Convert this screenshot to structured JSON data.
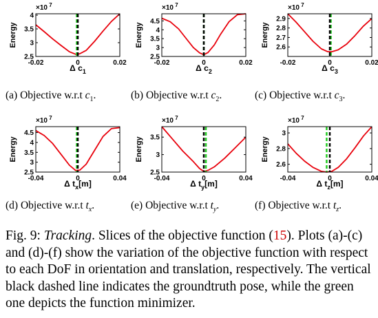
{
  "chart_data": [
    {
      "type": "line",
      "panel": "(a)",
      "caption": "Objective w.r.t",
      "caption_var": "c",
      "caption_sub": "1",
      "exponent": "×10",
      "exponent_power": "7",
      "ylabel": "Energy",
      "xlabel_delta": "Δ",
      "xlabel_var": "c",
      "xlabel_sub": "1",
      "xlabel_unit": "",
      "xlim": [
        -0.02,
        0.02
      ],
      "ylim": [
        2.5,
        4.05
      ],
      "xticks": [
        -0.02,
        0,
        0.02
      ],
      "xtick_labels": [
        "-0.02",
        "0",
        "0.02"
      ],
      "yticks": [
        2.5,
        3,
        3.5,
        4
      ],
      "ytick_labels": [
        "2.5",
        "3",
        "3.5",
        "4"
      ],
      "groundtruth_x": 0,
      "minimizer_x": -0.0005,
      "series": [
        {
          "color": "#e8000b",
          "x": [
            -0.02,
            -0.016,
            -0.012,
            -0.008,
            -0.004,
            -0.001,
            0,
            0.001,
            0.004,
            0.008,
            0.012,
            0.016,
            0.02
          ],
          "y": [
            3.65,
            3.4,
            3.14,
            2.9,
            2.67,
            2.58,
            2.58,
            2.6,
            2.72,
            3.05,
            3.42,
            3.77,
            4.05
          ]
        }
      ]
    },
    {
      "type": "line",
      "panel": "(b)",
      "caption": "Objective w.r.t",
      "caption_var": "c",
      "caption_sub": "2",
      "exponent": "×10",
      "exponent_power": "7",
      "ylabel": "Energy",
      "xlabel_delta": "Δ",
      "xlabel_var": "c",
      "xlabel_sub": "2",
      "xlabel_unit": "",
      "xlim": [
        -0.02,
        0.02
      ],
      "ylim": [
        2.5,
        4.9
      ],
      "xticks": [
        -0.02,
        0,
        0.02
      ],
      "xtick_labels": [
        "-0.02",
        "0",
        "0.02"
      ],
      "yticks": [
        2.5,
        3,
        3.5,
        4,
        4.5
      ],
      "ytick_labels": [
        "2.5",
        "3",
        "3.5",
        "4",
        "4.5"
      ],
      "groundtruth_x": 0,
      "minimizer_x": 0,
      "series": [
        {
          "color": "#e8000b",
          "x": [
            -0.02,
            -0.016,
            -0.012,
            -0.008,
            -0.005,
            -0.002,
            0,
            0.002,
            0.005,
            0.008,
            0.012,
            0.016,
            0.02
          ],
          "y": [
            4.65,
            4.45,
            4.05,
            3.45,
            3.0,
            2.7,
            2.6,
            2.72,
            3.15,
            3.75,
            4.45,
            4.85,
            4.9
          ]
        }
      ]
    },
    {
      "type": "line",
      "panel": "(c)",
      "caption": "Objective w.r.t",
      "caption_var": "c",
      "caption_sub": "3",
      "exponent": "×10",
      "exponent_power": "7",
      "ylabel": "Energy",
      "xlabel_delta": "Δ",
      "xlabel_var": "c",
      "xlabel_sub": "3",
      "xlabel_unit": "",
      "xlim": [
        -0.02,
        0.02
      ],
      "ylim": [
        2.5,
        2.95
      ],
      "xticks": [
        -0.02,
        0,
        0.02
      ],
      "xtick_labels": [
        "-0.02",
        "0",
        "0.02"
      ],
      "yticks": [
        2.6,
        2.7,
        2.8,
        2.9
      ],
      "ytick_labels": [
        "2.6",
        "2.7",
        "2.8",
        "2.9"
      ],
      "groundtruth_x": 0,
      "minimizer_x": 0.0005,
      "series": [
        {
          "color": "#e8000b",
          "x": [
            -0.02,
            -0.016,
            -0.012,
            -0.008,
            -0.004,
            -0.001,
            0.001,
            0.004,
            0.008,
            0.012,
            0.016,
            0.02
          ],
          "y": [
            2.95,
            2.86,
            2.76,
            2.66,
            2.58,
            2.55,
            2.55,
            2.57,
            2.63,
            2.72,
            2.82,
            2.9
          ]
        }
      ]
    },
    {
      "type": "line",
      "panel": "(d)",
      "caption": "Objective w.r.t",
      "caption_var": "t",
      "caption_sub": "x",
      "exponent": "×10",
      "exponent_power": "7",
      "ylabel": "Energy",
      "xlabel_delta": "Δ",
      "xlabel_var": "t",
      "xlabel_sub": "x",
      "xlabel_unit": "[m]",
      "xlim": [
        -0.04,
        0.04
      ],
      "ylim": [
        2.5,
        4.8
      ],
      "xticks": [
        -0.04,
        0,
        0.04
      ],
      "xtick_labels": [
        "-0.04",
        "0",
        "0.04"
      ],
      "yticks": [
        2.5,
        3,
        3.5,
        4,
        4.5
      ],
      "ytick_labels": [
        "2.5",
        "3",
        "3.5",
        "4",
        "4.5"
      ],
      "groundtruth_x": 0,
      "minimizer_x": -0.001,
      "series": [
        {
          "color": "#e8000b",
          "x": [
            -0.04,
            -0.032,
            -0.024,
            -0.016,
            -0.008,
            -0.002,
            0.002,
            0.008,
            0.016,
            0.024,
            0.032,
            0.04
          ],
          "y": [
            4.6,
            4.35,
            3.95,
            3.4,
            2.85,
            2.58,
            2.6,
            2.9,
            3.6,
            4.3,
            4.7,
            4.75
          ]
        }
      ]
    },
    {
      "type": "line",
      "panel": "(e)",
      "caption": "Objective w.r.t",
      "caption_var": "t",
      "caption_sub": "y",
      "exponent": "×10",
      "exponent_power": "7",
      "ylabel": "Energy",
      "xlabel_delta": "Δ",
      "xlabel_var": "t",
      "xlabel_sub": "y",
      "xlabel_unit": "[m]",
      "xlim": [
        -0.04,
        0.04
      ],
      "ylim": [
        2.5,
        3.8
      ],
      "xticks": [
        -0.04,
        0,
        0.04
      ],
      "xtick_labels": [
        "-0.04",
        "0",
        "0.04"
      ],
      "yticks": [
        2.5,
        3,
        3.5
      ],
      "ytick_labels": [
        "2.5",
        "3",
        "3.5"
      ],
      "groundtruth_x": 0,
      "minimizer_x": 0.002,
      "series": [
        {
          "color": "#e8000b",
          "x": [
            -0.04,
            -0.03,
            -0.02,
            -0.01,
            -0.004,
            0,
            0.004,
            0.01,
            0.02,
            0.03,
            0.04
          ],
          "y": [
            3.8,
            3.45,
            3.1,
            2.8,
            2.6,
            2.52,
            2.55,
            2.65,
            2.9,
            3.2,
            3.5
          ]
        }
      ]
    },
    {
      "type": "line",
      "panel": "(f)",
      "caption": "Objective w.r.t",
      "caption_var": "t",
      "caption_sub": "z",
      "exponent": "×10",
      "exponent_power": "7",
      "ylabel": "Energy",
      "xlabel_delta": "Δ",
      "xlabel_var": "t",
      "xlabel_sub": "z",
      "xlabel_unit": "[m]",
      "xlim": [
        -0.04,
        0.04
      ],
      "ylim": [
        2.5,
        3.08
      ],
      "xticks": [
        -0.04,
        0,
        0.04
      ],
      "xtick_labels": [
        "-0.04",
        "0",
        "0.04"
      ],
      "yticks": [
        2.6,
        2.8,
        3
      ],
      "ytick_labels": [
        "2.6",
        "2.8",
        "3"
      ],
      "groundtruth_x": 0,
      "minimizer_x": -0.003,
      "series": [
        {
          "color": "#e8000b",
          "x": [
            -0.04,
            -0.032,
            -0.024,
            -0.016,
            -0.008,
            -0.003,
            0.002,
            0.008,
            0.016,
            0.024,
            0.032,
            0.04
          ],
          "y": [
            2.86,
            2.74,
            2.64,
            2.56,
            2.51,
            2.5,
            2.51,
            2.56,
            2.67,
            2.81,
            2.96,
            3.08
          ]
        }
      ]
    }
  ],
  "figure_caption": {
    "fig_label": "Fig. 9:",
    "title": "Tracking",
    "text_before_ref": ". Slices of the objective function (",
    "ref": "15",
    "text_after_ref": "). Plots (a)-(c) and (d)-(f) show the variation of the objective function with respect to each DoF in orientation and translation, respectively. The vertical black dashed line indicates the groundtruth pose, while the green one depicts the function minimizer."
  },
  "colors": {
    "curve": "#e8000b",
    "groundtruth_line": "#000000",
    "minimizer_line": "#22cc22",
    "reference_link": "#cc0000"
  }
}
